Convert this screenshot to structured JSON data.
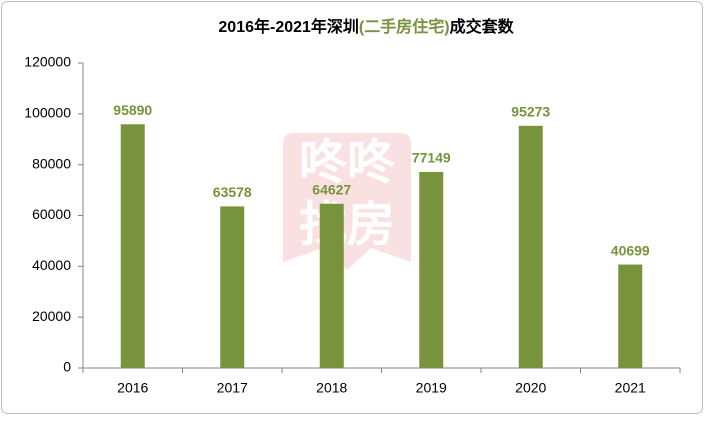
{
  "chart_data": {
    "type": "bar",
    "title_segments": [
      "2016年-2021年深圳",
      "(二手房住宅)",
      "成交套数"
    ],
    "watermark": [
      "咚咚",
      "找房"
    ],
    "categories": [
      "2016",
      "2017",
      "2018",
      "2019",
      "2020",
      "2021"
    ],
    "values": [
      95890,
      63578,
      64627,
      77149,
      95273,
      40699
    ],
    "color": "#77933c",
    "ylim": [
      0,
      120000
    ],
    "yticks": [
      0,
      20000,
      40000,
      60000,
      80000,
      100000,
      120000
    ],
    "grid": false
  }
}
